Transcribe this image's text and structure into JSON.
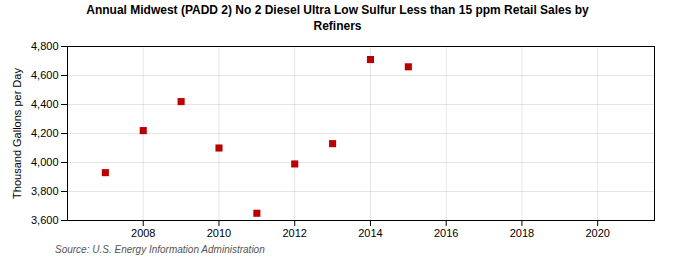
{
  "chart_data": {
    "type": "scatter",
    "title": "Annual Midwest (PADD 2) No 2 Diesel Ultra Low Sulfur Less than 15 ppm Retail Sales by\nRefiners",
    "ylabel": "Thousand Gallons per Day",
    "source": "Source: U.S. Energy Information Administration",
    "x": [
      2007,
      2008,
      2009,
      2010,
      2011,
      2012,
      2013,
      2014,
      2015
    ],
    "values": [
      3930,
      4220,
      4420,
      4100,
      3650,
      3990,
      4130,
      4710,
      4660
    ],
    "color": "#bb0000",
    "marker": "square",
    "xlim": [
      2006,
      2021.5
    ],
    "xticks": [
      2008,
      2010,
      2012,
      2014,
      2016,
      2018,
      2020
    ],
    "ylim": [
      3600,
      4800
    ],
    "yticks": [
      {
        "value": 3600,
        "label": "3,600"
      },
      {
        "value": 3800,
        "label": "3,800"
      },
      {
        "value": 4000,
        "label": "4,000"
      },
      {
        "value": 4200,
        "label": "4,200"
      },
      {
        "value": 4400,
        "label": "4,400"
      },
      {
        "value": 4600,
        "label": "4,600"
      },
      {
        "value": 4800,
        "label": "4,800"
      }
    ],
    "grid": true
  }
}
